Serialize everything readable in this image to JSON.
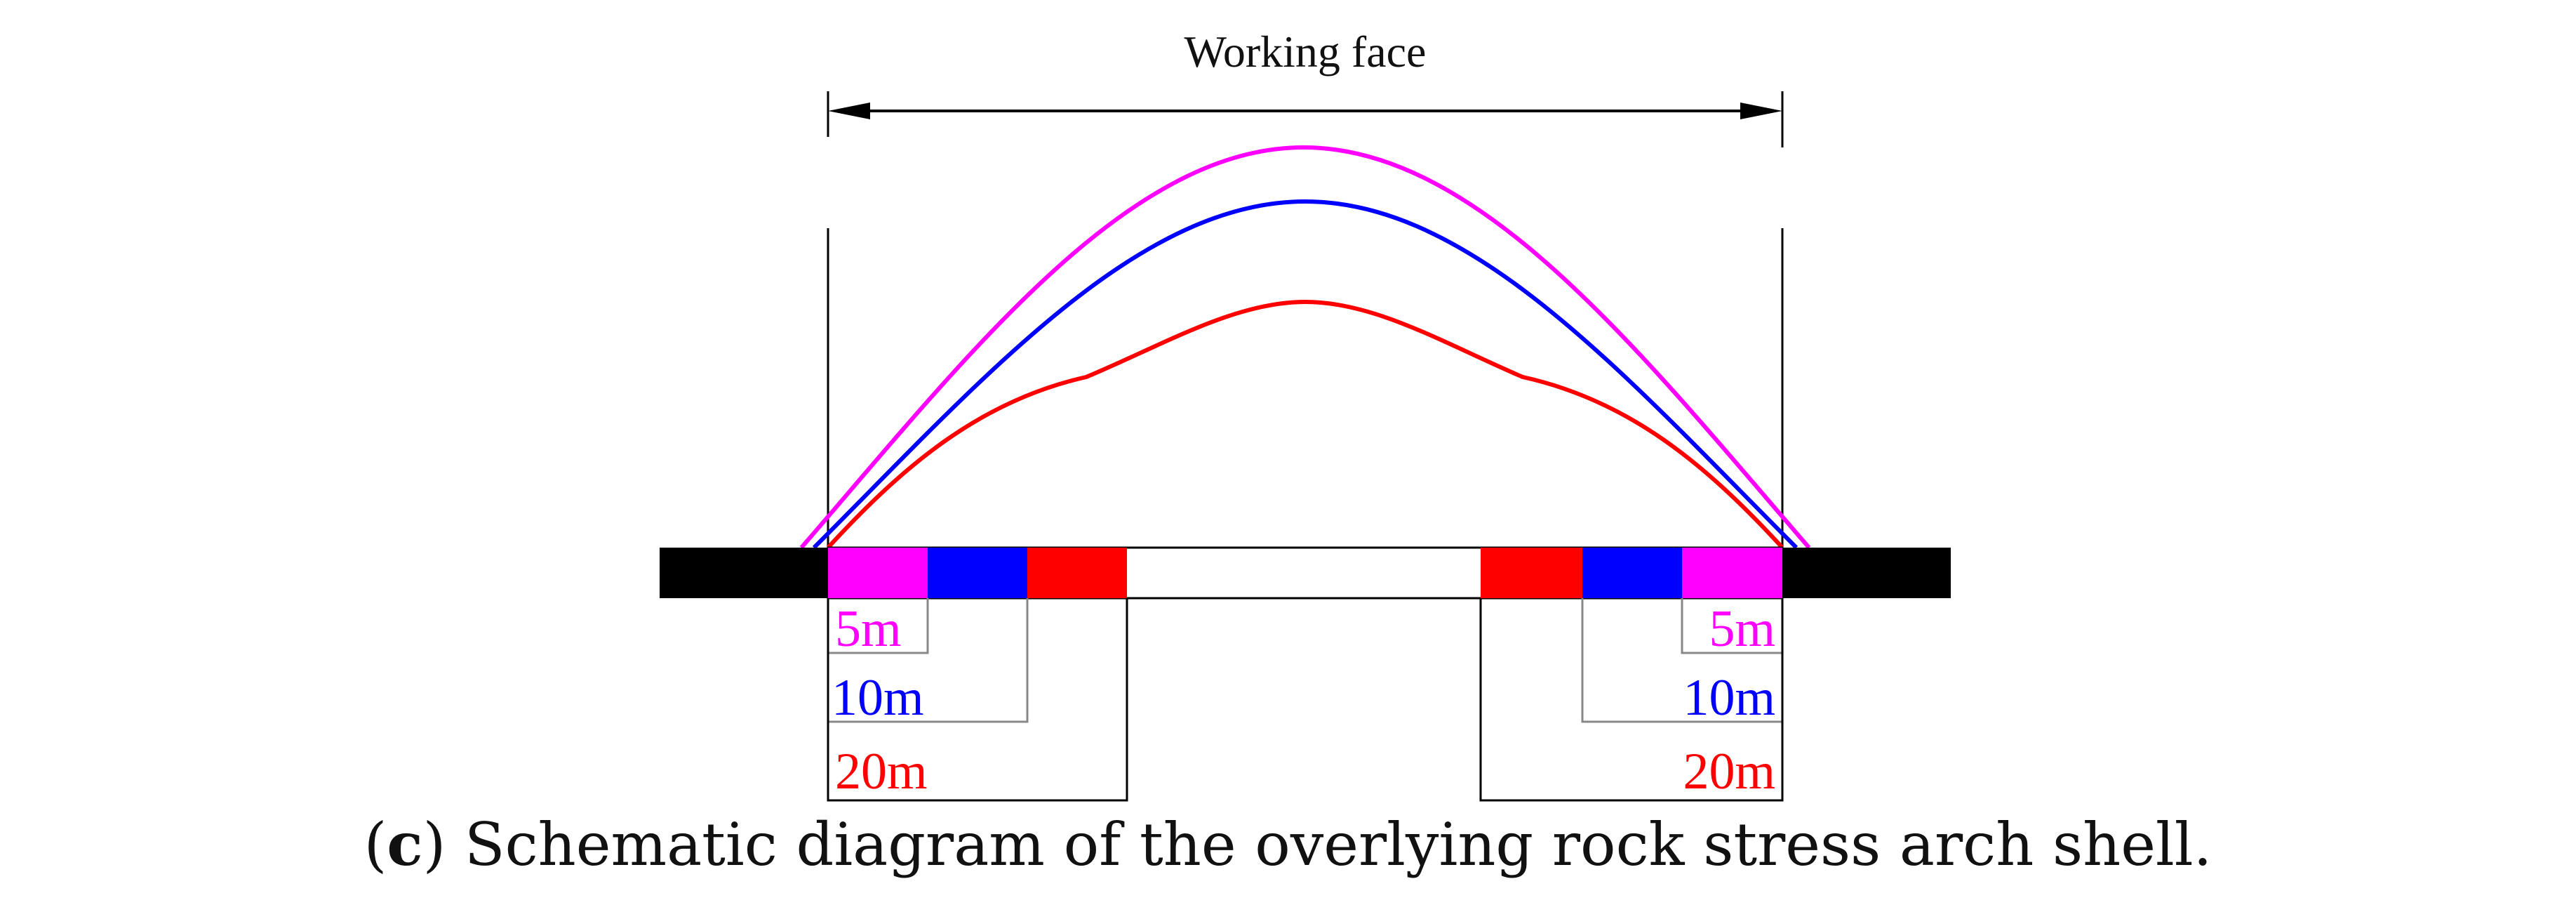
{
  "title": "Working face",
  "colors": {
    "m5": "#ff00ff",
    "m10": "#0000ff",
    "m20": "#ff0000",
    "coal": "#000000",
    "line": "#000000",
    "guide": "#888888"
  },
  "legend": {
    "left": {
      "m5": "5m",
      "m10": "10m",
      "m20": "20m"
    },
    "right": {
      "m5": "5m",
      "m10": "10m",
      "m20": "20m"
    }
  },
  "caption": {
    "label": "c",
    "text": " Schematic diagram of the overlying rock stress arch shell."
  }
}
